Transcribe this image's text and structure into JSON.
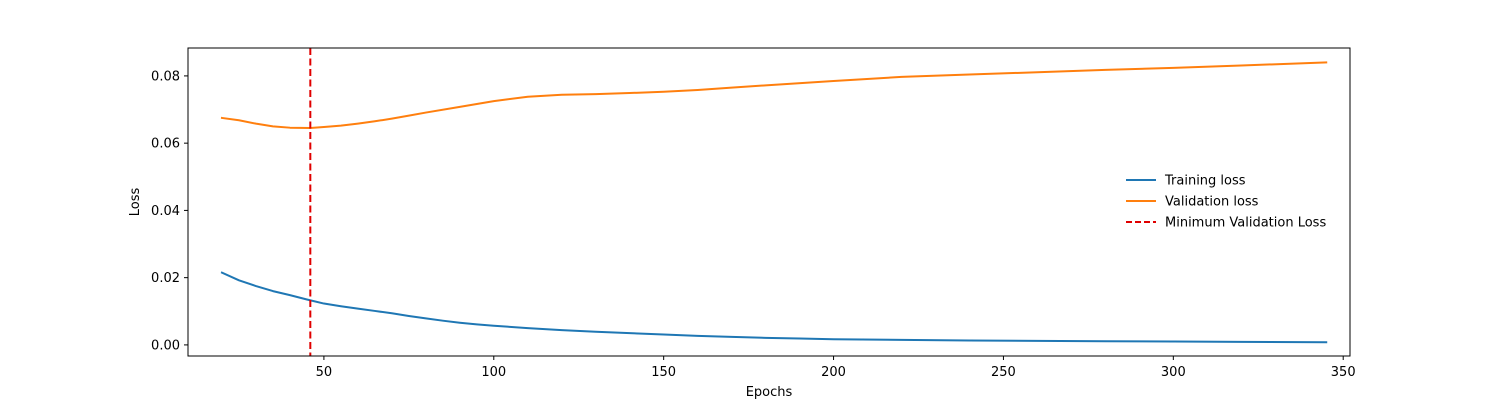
{
  "chart_data": {
    "type": "line",
    "title": "",
    "xlabel": "Epochs",
    "ylabel": "Loss",
    "xlim": [
      10,
      352
    ],
    "ylim": [
      -0.0033,
      0.0883
    ],
    "xticks": [
      50,
      100,
      150,
      200,
      250,
      300,
      350
    ],
    "yticks": [
      0.0,
      0.02,
      0.04,
      0.06,
      0.08
    ],
    "ytick_format": 2,
    "grid": false,
    "legend_position": "center-right",
    "series": [
      {
        "name": "Training loss",
        "color": "#1f77b4",
        "style": "solid",
        "x": [
          20,
          25,
          30,
          35,
          40,
          45,
          50,
          55,
          60,
          65,
          70,
          75,
          80,
          85,
          90,
          95,
          100,
          110,
          120,
          130,
          140,
          150,
          160,
          170,
          180,
          190,
          200,
          220,
          240,
          260,
          280,
          300,
          320,
          345
        ],
        "y": [
          0.0215,
          0.0192,
          0.0175,
          0.016,
          0.0148,
          0.0135,
          0.0123,
          0.0115,
          0.0108,
          0.0101,
          0.0094,
          0.0086,
          0.0079,
          0.0072,
          0.0066,
          0.0061,
          0.0057,
          0.005,
          0.0044,
          0.0039,
          0.0035,
          0.0031,
          0.0027,
          0.0024,
          0.0021,
          0.0019,
          0.0017,
          0.0015,
          0.0013,
          0.0012,
          0.0011,
          0.001,
          0.0009,
          0.0008
        ]
      },
      {
        "name": "Validation loss",
        "color": "#ff7f0e",
        "style": "solid",
        "x": [
          20,
          25,
          30,
          35,
          40,
          46,
          50,
          55,
          60,
          65,
          70,
          75,
          80,
          90,
          100,
          110,
          120,
          130,
          140,
          150,
          160,
          170,
          180,
          200,
          220,
          240,
          260,
          280,
          300,
          320,
          345
        ],
        "y": [
          0.0675,
          0.0668,
          0.0658,
          0.065,
          0.0646,
          0.0645,
          0.0648,
          0.0652,
          0.0658,
          0.0665,
          0.0673,
          0.0682,
          0.0691,
          0.0708,
          0.0725,
          0.0738,
          0.0744,
          0.0746,
          0.0749,
          0.0753,
          0.0758,
          0.0765,
          0.0772,
          0.0785,
          0.0797,
          0.0804,
          0.0811,
          0.0818,
          0.0824,
          0.0831,
          0.084
        ]
      }
    ],
    "vlines": [
      {
        "name": "Minimum Validation Loss",
        "x": 46,
        "color": "#e00000",
        "style": "dashed"
      }
    ]
  }
}
